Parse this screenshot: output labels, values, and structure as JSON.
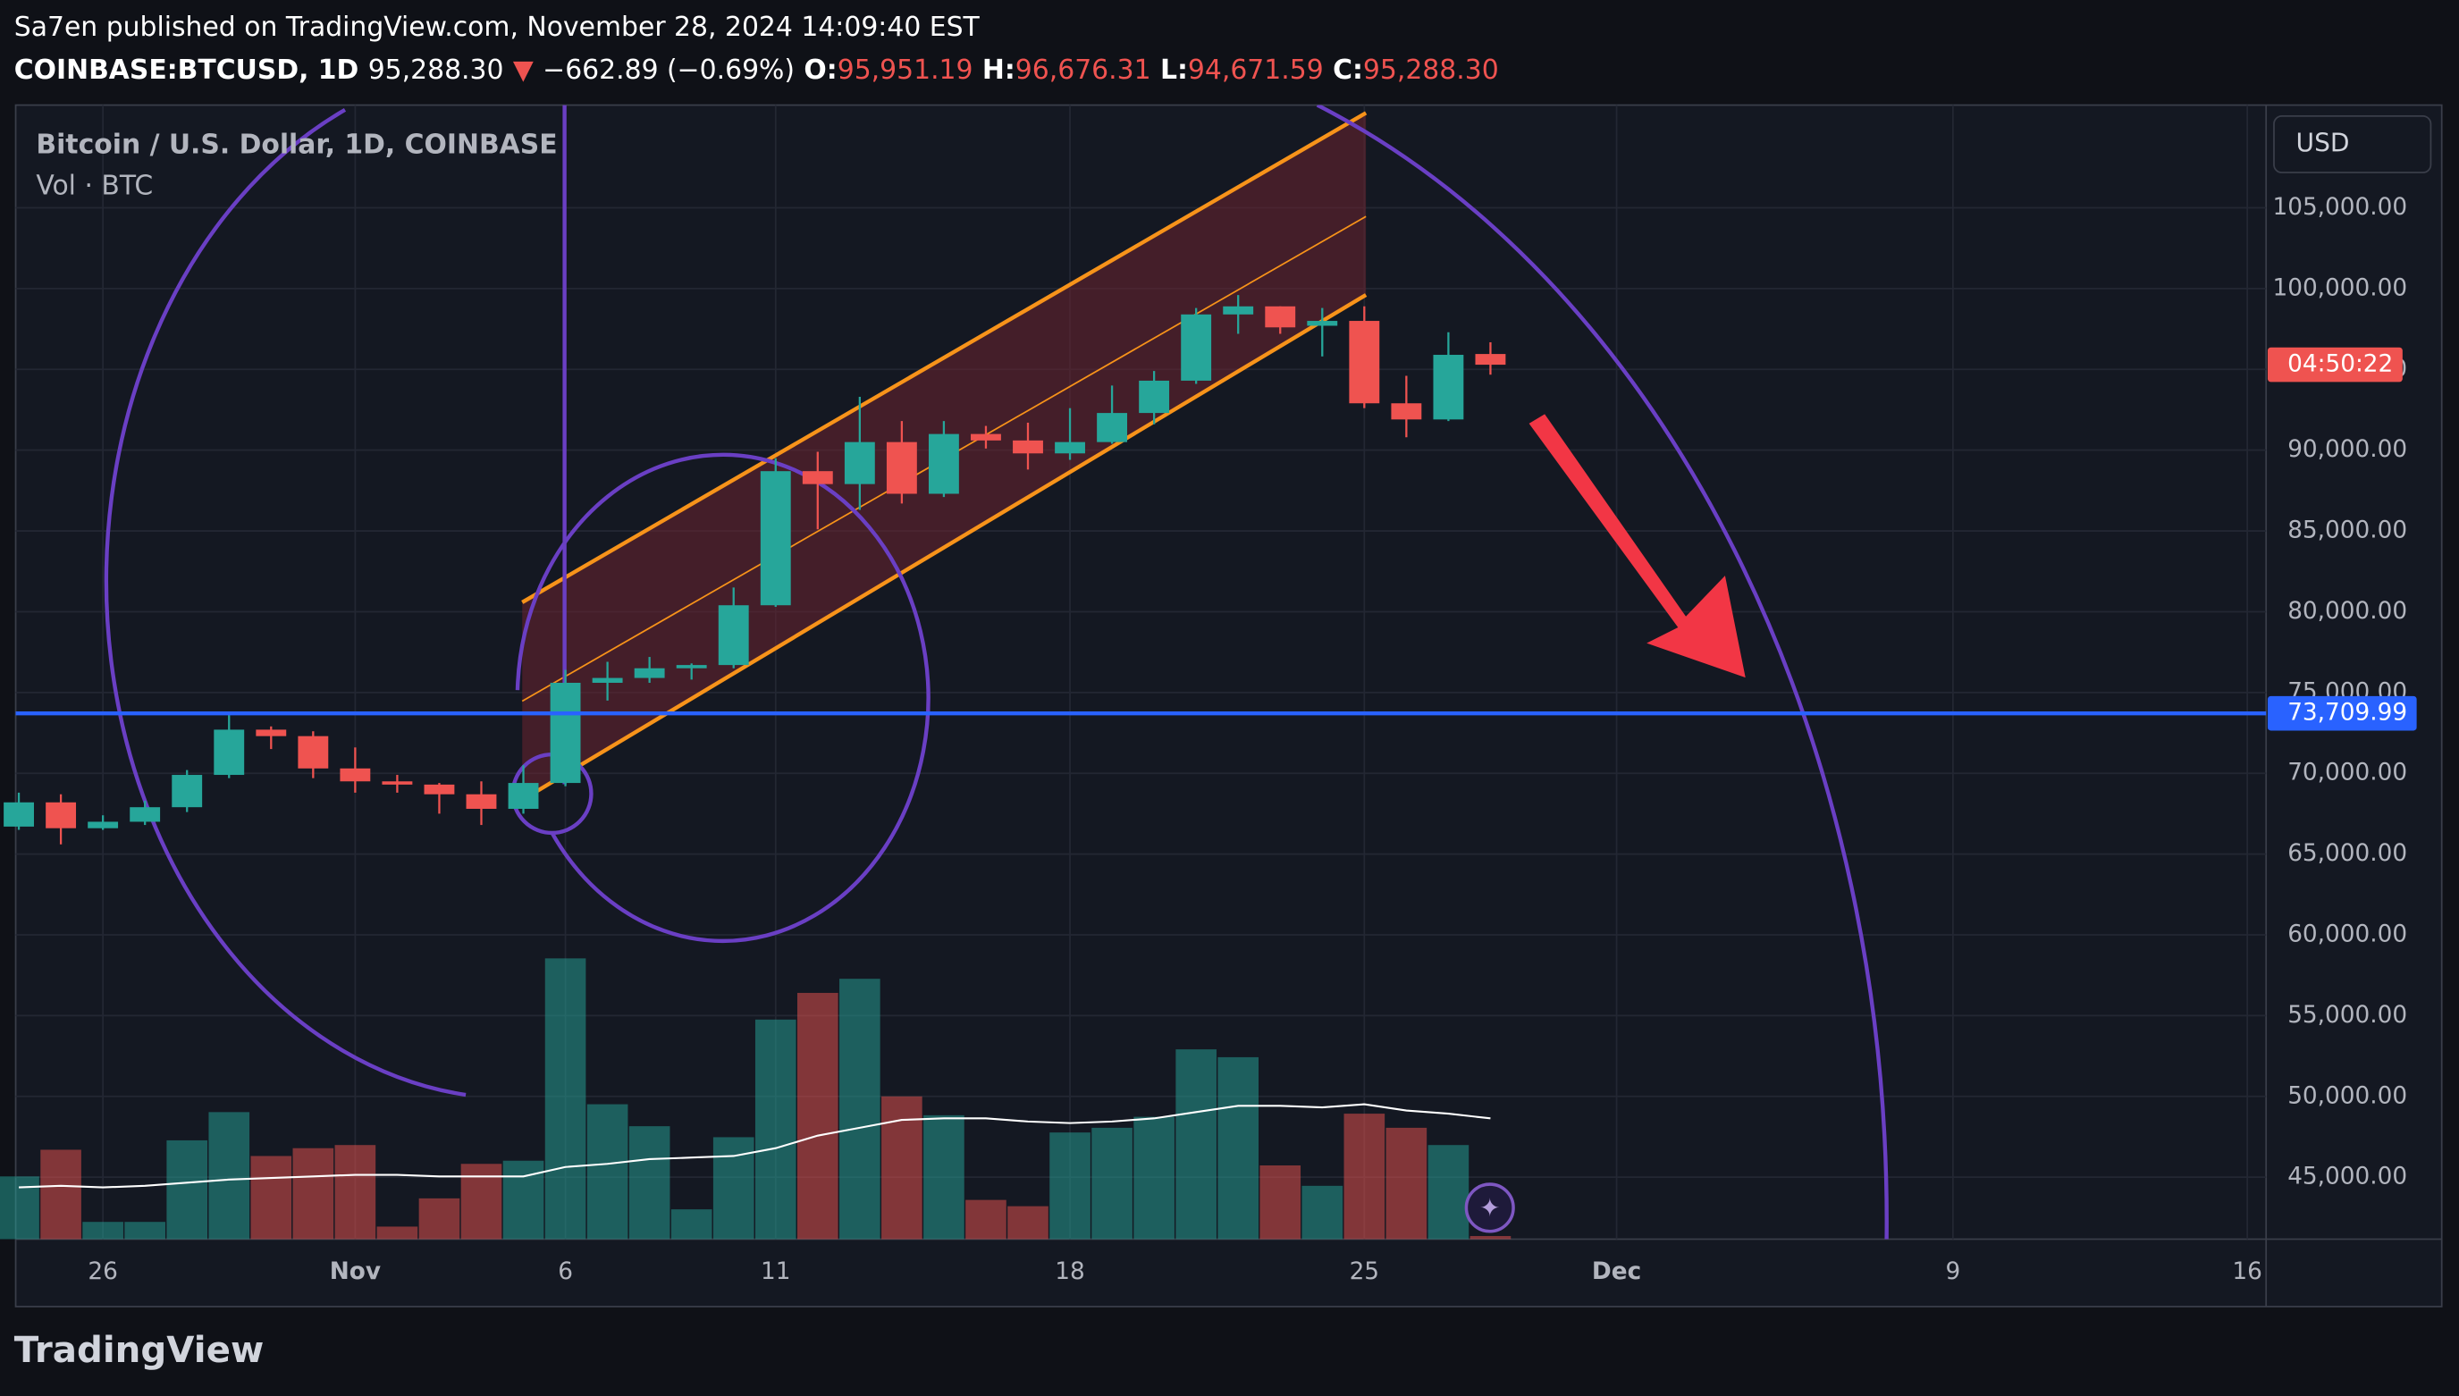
{
  "header": {
    "published": "Sa7en published on TradingView.com, November 28, 2024 14:09:40 EST",
    "symbol": "COINBASE:BTCUSD, 1D",
    "last": "95,288.30",
    "arrow": "▼",
    "change": "−662.89 (−0.69%)",
    "o_label": "O:",
    "o": "95,951.19",
    "h_label": "H:",
    "h": "96,676.31",
    "l_label": "L:",
    "l": "94,671.59",
    "c_label": "C:",
    "c": "95,288.30"
  },
  "pane": {
    "legend": "Bitcoin / U.S. Dollar, 1D, COINBASE",
    "volume_legend": "Vol · BTC",
    "currency": "USD",
    "countdown": "04:50:22"
  },
  "brand": "TradingView",
  "chart_data": {
    "type": "candlestick",
    "x": [
      "2024-10-24",
      "2024-10-25",
      "2024-10-26",
      "2024-10-27",
      "2024-10-28",
      "2024-10-29",
      "2024-10-30",
      "2024-10-31",
      "2024-11-01",
      "2024-11-02",
      "2024-11-03",
      "2024-11-04",
      "2024-11-05",
      "2024-11-06",
      "2024-11-07",
      "2024-11-08",
      "2024-11-09",
      "2024-11-10",
      "2024-11-11",
      "2024-11-12",
      "2024-11-13",
      "2024-11-14",
      "2024-11-15",
      "2024-11-16",
      "2024-11-17",
      "2024-11-18",
      "2024-11-19",
      "2024-11-20",
      "2024-11-21",
      "2024-11-22",
      "2024-11-23",
      "2024-11-24",
      "2024-11-25",
      "2024-11-26",
      "2024-11-27",
      "2024-11-28"
    ],
    "open": [
      66700,
      68200,
      66600,
      67000,
      67900,
      69900,
      72700,
      72300,
      70300,
      69500,
      69300,
      68700,
      67800,
      69400,
      75600,
      75900,
      76500,
      76700,
      80400,
      88700,
      87900,
      90500,
      87300,
      91000,
      90600,
      89800,
      90500,
      92300,
      94300,
      98400,
      98900,
      97700,
      98000,
      92900,
      91900,
      95951.19
    ],
    "high": [
      68800,
      68700,
      67400,
      68300,
      70200,
      73600,
      72900,
      72600,
      71600,
      69900,
      69400,
      69500,
      70500,
      76400,
      76900,
      77200,
      76800,
      81500,
      89500,
      89900,
      93300,
      91800,
      91800,
      91500,
      91700,
      92600,
      94000,
      94900,
      98800,
      99600,
      98900,
      98800,
      98900,
      94600,
      97300,
      96676.31
    ],
    "low": [
      66500,
      65600,
      66500,
      66800,
      67600,
      69700,
      71500,
      69700,
      68800,
      68800,
      67500,
      66800,
      67500,
      69200,
      74500,
      75600,
      75800,
      76500,
      80300,
      85100,
      86300,
      86700,
      87100,
      90100,
      88800,
      89400,
      90400,
      91600,
      94100,
      97200,
      97200,
      95800,
      92600,
      90800,
      91800,
      94671.59
    ],
    "close": [
      68200,
      66600,
      67000,
      67900,
      69900,
      72700,
      72300,
      70300,
      69500,
      69300,
      68700,
      67800,
      69400,
      75600,
      75900,
      76500,
      76700,
      80400,
      88700,
      87900,
      90500,
      87300,
      91000,
      90600,
      89800,
      90500,
      92300,
      94300,
      98400,
      98900,
      97600,
      98000,
      92900,
      91900,
      95900,
      95288.3
    ],
    "volume": [
      40,
      57,
      11,
      11,
      63,
      81,
      53,
      58,
      60,
      8,
      26,
      48,
      50,
      179,
      86,
      72,
      19,
      65,
      140,
      157,
      166,
      91,
      79,
      25,
      21,
      68,
      71,
      78,
      121,
      116,
      47,
      34,
      80,
      71,
      60,
      2
    ],
    "volume_ma": [
      33,
      34,
      33,
      34,
      36,
      38,
      39,
      40,
      41,
      41,
      40,
      40,
      40,
      46,
      48,
      51,
      52,
      53,
      58,
      66,
      71,
      76,
      77,
      77,
      75,
      74,
      75,
      77,
      81,
      85,
      85,
      84,
      86,
      82,
      80,
      77
    ],
    "up_color": "#26a69a",
    "down_color": "#ef5350",
    "ma_color": "#ffffff",
    "ylim": [
      41165,
      111260
    ],
    "yticks": [
      {
        "value": 45000,
        "label": "45,000.00"
      },
      {
        "value": 50000,
        "label": "50,000.00"
      },
      {
        "value": 55000,
        "label": "55,000.00"
      },
      {
        "value": 60000,
        "label": "60,000.00"
      },
      {
        "value": 65000,
        "label": "65,000.00"
      },
      {
        "value": 70000,
        "label": "70,000.00"
      },
      {
        "value": 75000,
        "label": "75,000.00"
      },
      {
        "value": 80000,
        "label": "80,000.00"
      },
      {
        "value": 85000,
        "label": "85,000.00"
      },
      {
        "value": 90000,
        "label": "90,000.00"
      },
      {
        "value": 95000,
        "label": "95,000.00"
      },
      {
        "value": 100000,
        "label": "100,000.00"
      },
      {
        "value": 105000,
        "label": "105,000.00"
      }
    ],
    "xlim": [
      "2024-10-24",
      "2024-12-16"
    ],
    "xticks": [
      {
        "value": "2024-10-26",
        "label": "26"
      },
      {
        "value": "2024-11-01",
        "label": "Nov"
      },
      {
        "value": "2024-11-06",
        "label": "6"
      },
      {
        "value": "2024-11-11",
        "label": "11"
      },
      {
        "value": "2024-11-18",
        "label": "18"
      },
      {
        "value": "2024-11-25",
        "label": "25"
      },
      {
        "value": "2024-12-01",
        "label": "Dec"
      },
      {
        "value": "2024-12-09",
        "label": "9"
      },
      {
        "value": "2024-12-16",
        "label": "16"
      }
    ],
    "hline": {
      "value": 73709.99,
      "label": "73,709.99",
      "color": "#2962ff"
    },
    "grid": true
  }
}
